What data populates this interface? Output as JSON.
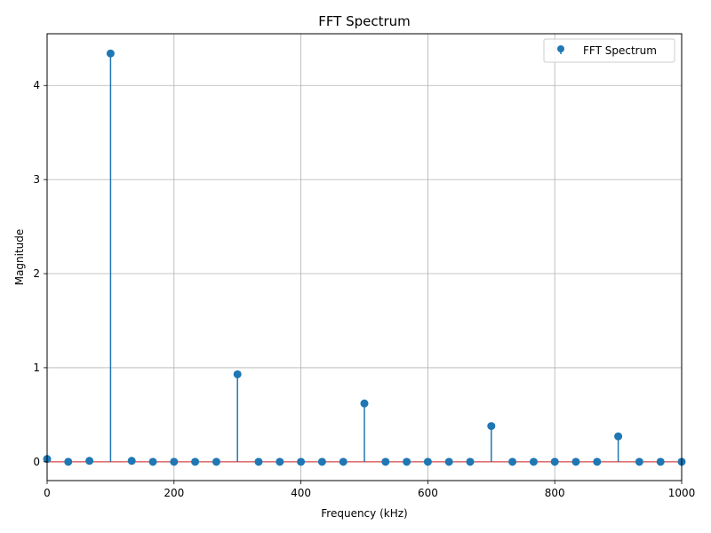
{
  "chart_data": {
    "type": "stem",
    "title": "FFT Spectrum",
    "xlabel": "Frequency (kHz)",
    "ylabel": "Magnitude",
    "xlim": [
      0,
      1000
    ],
    "ylim": [
      -0.2,
      4.55
    ],
    "xticks": [
      0,
      200,
      400,
      600,
      800,
      1000
    ],
    "yticks": [
      0,
      1,
      2,
      3,
      4
    ],
    "grid": true,
    "legend_position": "top-right",
    "color": "#1f77b4",
    "series": [
      {
        "name": "FFT Spectrum",
        "x": [
          0,
          33.3,
          66.7,
          100,
          133.3,
          166.7,
          200,
          233.3,
          266.7,
          300,
          333.3,
          366.7,
          400,
          433.3,
          466.7,
          500,
          533.3,
          566.7,
          600,
          633.3,
          666.7,
          700,
          733.3,
          766.7,
          800,
          833.3,
          866.7,
          900,
          933.3,
          966.7,
          1000
        ],
        "y": [
          0.03,
          0.0,
          0.01,
          4.34,
          0.01,
          0.0,
          0.0,
          0.0,
          0.0,
          0.93,
          0.0,
          0.0,
          0.0,
          0.0,
          0.0,
          0.62,
          0.0,
          0.0,
          0.0,
          0.0,
          0.0,
          0.38,
          0.0,
          0.0,
          0.0,
          0.0,
          0.0,
          0.27,
          0.0,
          0.0,
          0.0
        ]
      }
    ]
  }
}
